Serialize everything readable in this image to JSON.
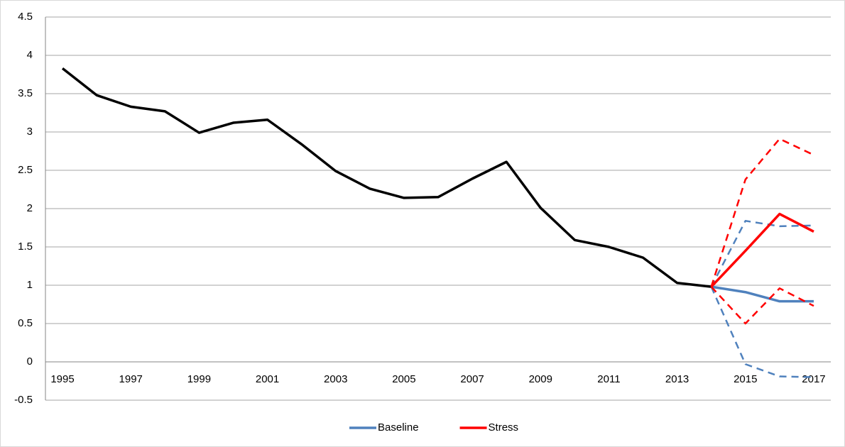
{
  "chart_data": {
    "type": "line",
    "categories": [
      1995,
      null,
      1997,
      null,
      1999,
      null,
      2001,
      null,
      2003,
      null,
      2005,
      null,
      2007,
      null,
      2009,
      null,
      2011,
      null,
      2013,
      null,
      2015,
      null,
      2017
    ],
    "ylim": [
      -0.5,
      4.5
    ],
    "yticks": [
      -0.5,
      0,
      0.5,
      1,
      1.5,
      2,
      2.5,
      3,
      3.5,
      4,
      4.5
    ],
    "grid": true,
    "legend": "bottom",
    "series": [
      {
        "color": "#000000",
        "values": [
          3.83,
          3.48,
          3.33,
          3.27,
          2.99,
          3.12,
          3.16,
          2.84,
          2.49,
          2.26,
          2.14,
          2.15,
          2.39,
          2.61,
          2.01,
          1.59,
          1.5,
          1.36,
          1.03,
          0.98,
          null,
          null,
          null
        ]
      },
      {
        "name": "Baseline",
        "color": "#4f81bd",
        "values": [
          null,
          null,
          null,
          null,
          null,
          null,
          null,
          null,
          null,
          null,
          null,
          null,
          null,
          null,
          null,
          null,
          null,
          null,
          null,
          0.98,
          0.91,
          0.79,
          0.79
        ]
      },
      {
        "color": "#4f81bd",
        "dashed": true,
        "values": [
          null,
          null,
          null,
          null,
          null,
          null,
          null,
          null,
          null,
          null,
          null,
          null,
          null,
          null,
          null,
          null,
          null,
          null,
          null,
          0.98,
          1.84,
          1.77,
          1.78
        ]
      },
      {
        "color": "#4f81bd",
        "dashed": true,
        "values": [
          null,
          null,
          null,
          null,
          null,
          null,
          null,
          null,
          null,
          null,
          null,
          null,
          null,
          null,
          null,
          null,
          null,
          null,
          null,
          0.98,
          -0.03,
          -0.19,
          -0.2
        ]
      },
      {
        "name": "Stress",
        "color": "#ff0000",
        "values": [
          null,
          null,
          null,
          null,
          null,
          null,
          null,
          null,
          null,
          null,
          null,
          null,
          null,
          null,
          null,
          null,
          null,
          null,
          null,
          0.98,
          1.45,
          1.93,
          1.7
        ]
      },
      {
        "color": "#ff0000",
        "dashed": true,
        "values": [
          null,
          null,
          null,
          null,
          null,
          null,
          null,
          null,
          null,
          null,
          null,
          null,
          null,
          null,
          null,
          null,
          null,
          null,
          null,
          0.98,
          2.38,
          2.91,
          2.7
        ]
      },
      {
        "color": "#ff0000",
        "dashed": true,
        "values": [
          null,
          null,
          null,
          null,
          null,
          null,
          null,
          null,
          null,
          null,
          null,
          null,
          null,
          null,
          null,
          null,
          null,
          null,
          null,
          0.98,
          0.5,
          0.96,
          0.73
        ]
      }
    ]
  }
}
